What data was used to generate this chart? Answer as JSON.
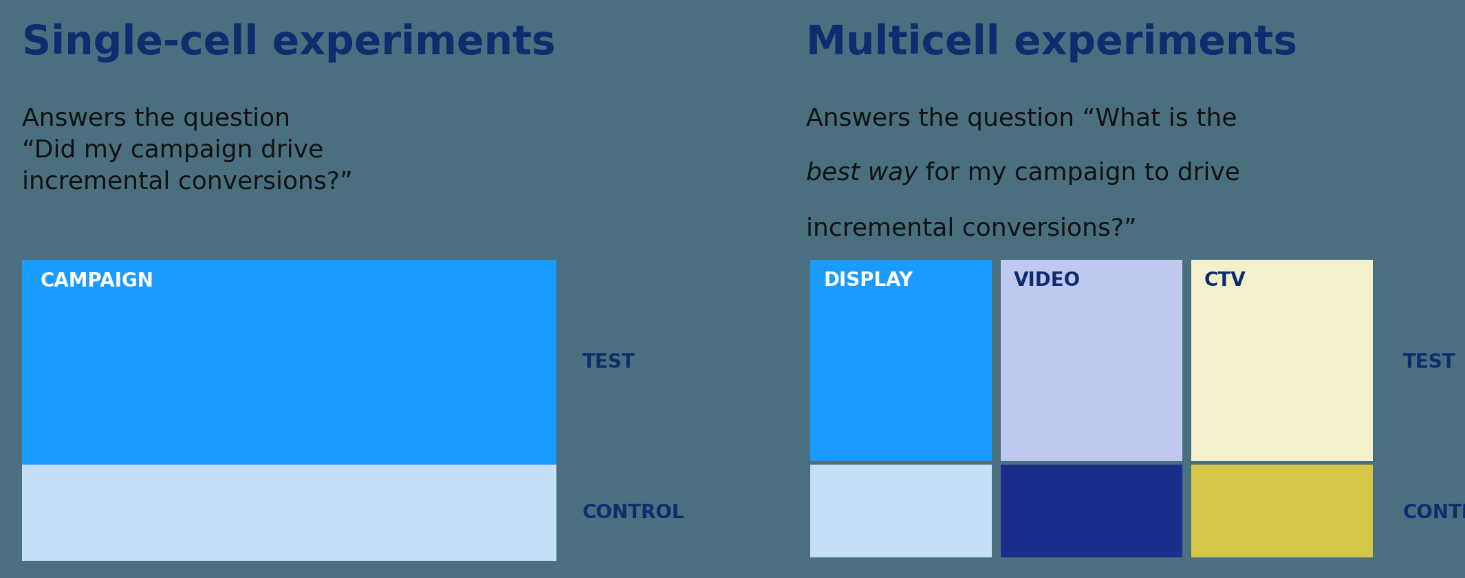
{
  "bg_color": "#4a7080",
  "divider_color": "#aabbcc",
  "title_left": "Single-cell experiments",
  "title_right": "Multicell experiments",
  "title_color": "#0d2d6e",
  "title_fontsize": 42,
  "subtitle_left_lines": [
    "Answers the question",
    "“Did my campaign drive",
    "incremental conversions?”"
  ],
  "subtitle_right_line1": "Answers the question “What is the",
  "subtitle_right_line2_italic": "best way",
  "subtitle_right_line2_normal": " for my campaign to drive",
  "subtitle_right_line3": "incremental conversions?”",
  "subtitle_fontsize": 26,
  "subtitle_color": "#111111",
  "label_test": "TEST",
  "label_control": "CONTROL",
  "label_color": "#0d2d6e",
  "label_fontsize": 20,
  "campaign_label": "CAMPAIGN",
  "display_label": "DISPLAY",
  "video_label": "VIDEO",
  "ctv_label": "CTV",
  "cell_label_fontsize": 20,
  "cell_label_color_white": "#ffffff",
  "cell_label_color_dark": "#0d2d6e",
  "single_test_color": "#1a9bff",
  "single_control_color": "#c5dff7",
  "multi_display_test_color": "#1a9bff",
  "multi_video_test_color": "#bfc8f0",
  "multi_ctv_test_color": "#f5f0cc",
  "multi_display_control_color": "#c5dff7",
  "multi_video_control_color": "#1a2d8a",
  "multi_ctv_control_color": "#d4c74a"
}
